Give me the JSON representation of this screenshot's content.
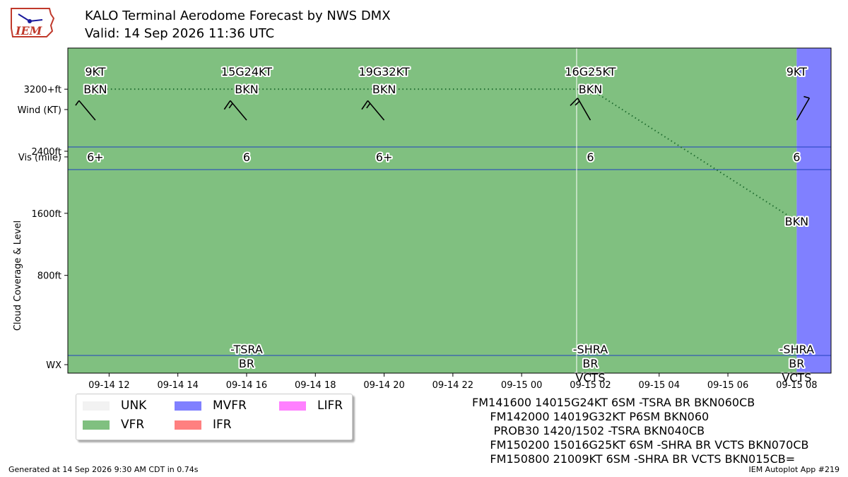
{
  "header": {
    "logo_text": "IEM",
    "title": "KALO Terminal Aerodome Forecast by NWS DMX",
    "subtitle": "Valid: 14 Sep 2026 11:36 UTC"
  },
  "chart_data": {
    "type": "timeline",
    "row_labels": {
      "wind": "Wind (KT)",
      "vis": "Vis (mile)",
      "wx": "WX",
      "cloud_axis": "Cloud Coverage & Level"
    },
    "x_ticks": [
      "09-14 12",
      "09-14 14",
      "09-14 16",
      "09-14 18",
      "09-14 20",
      "09-14 22",
      "09-15 00",
      "09-15 02",
      "09-15 04",
      "09-15 06",
      "09-15 08"
    ],
    "x_tick_hours": [
      12,
      14,
      16,
      18,
      20,
      22,
      24,
      26,
      28,
      30,
      32
    ],
    "x_range_hours": [
      10.8,
      33.0
    ],
    "cloud_ticks": [
      {
        "value": 800,
        "label": "800ft"
      },
      {
        "value": 1600,
        "label": "1600ft"
      },
      {
        "value": 2400,
        "label": "2400ft"
      },
      {
        "value": 3200,
        "label": "3200+ft"
      }
    ],
    "cloud_range_ft": [
      -460,
      3730
    ],
    "valid_line_hour": 25.6,
    "forecasts": [
      {
        "hour": 11.6,
        "wind_label": "9KT",
        "wind_dir": 140,
        "wind_speed": 9,
        "wind_gust": null,
        "vis": "6+",
        "sky": "BKN",
        "cloud_ft": 3200,
        "cloud_display": 3200,
        "wx": []
      },
      {
        "hour": 16.0,
        "wind_label": "15G24KT",
        "wind_dir": 140,
        "wind_speed": 15,
        "wind_gust": 24,
        "vis": "6",
        "sky": "BKN",
        "cloud_ft": 6000,
        "cloud_display": 3200,
        "wx": [
          "-TSRA",
          "BR"
        ]
      },
      {
        "hour": 20.0,
        "wind_label": "19G32KT",
        "wind_dir": 140,
        "wind_speed": 19,
        "wind_gust": 32,
        "vis": "6+",
        "sky": "BKN",
        "cloud_ft": 6000,
        "cloud_display": 3200,
        "wx": []
      },
      {
        "hour": 26.0,
        "wind_label": "16G25KT",
        "wind_dir": 150,
        "wind_speed": 16,
        "wind_gust": 25,
        "vis": "6",
        "sky": "BKN",
        "cloud_ft": 7000,
        "cloud_display": 3200,
        "wx": [
          "-SHRA",
          "BR",
          "VCTS"
        ]
      },
      {
        "hour": 32.0,
        "wind_label": "9KT",
        "wind_dir": 210,
        "wind_speed": 9,
        "wind_gust": null,
        "vis": "6",
        "sky": "BKN",
        "cloud_ft": 1500,
        "cloud_display": 1500,
        "wx": [
          "-SHRA",
          "BR",
          "VCTS"
        ]
      }
    ],
    "categories": [
      {
        "from_hour": 10.8,
        "to_hour": 32.0,
        "category": "VFR"
      },
      {
        "from_hour": 32.0,
        "to_hour": 33.0,
        "category": "MVFR"
      }
    ],
    "category_colors": {
      "UNK": "#f2f2f2",
      "VFR": "#80c080",
      "MVFR": "#8080ff",
      "IFR": "#ff8080",
      "LIFR": "#ff80ff"
    }
  },
  "legend": [
    {
      "label": "UNK",
      "color": "#f2f2f2"
    },
    {
      "label": "MVFR",
      "color": "#8080ff"
    },
    {
      "label": "LIFR",
      "color": "#ff80ff"
    },
    {
      "label": "VFR",
      "color": "#80c080"
    },
    {
      "label": "IFR",
      "color": "#ff8080"
    }
  ],
  "taf_text": [
    "FM141600 14015G24KT 6SM -TSRA BR BKN060CB",
    "     FM142000 14019G32KT P6SM BKN060",
    "      PROB30 1420/1502 -TSRA BKN040CB",
    "     FM150200 15016G25KT 6SM -SHRA BR VCTS BKN070CB",
    "     FM150800 21009KT 6SM -SHRA BR VCTS BKN015CB="
  ],
  "footer": {
    "generated": "Generated at 14 Sep 2026 9:30 AM CDT in 0.74s",
    "app": "IEM Autoplot App #219"
  }
}
